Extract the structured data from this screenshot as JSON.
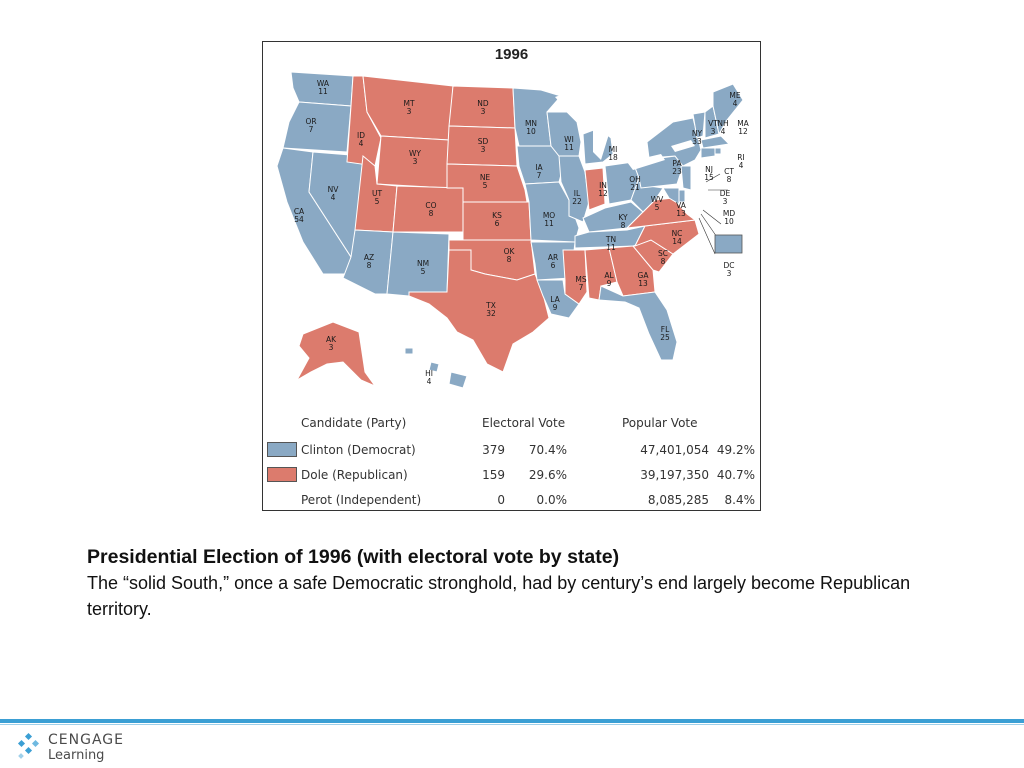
{
  "map": {
    "title": "1996",
    "colors": {
      "democrat": "#8aa9c4",
      "republican": "#dc7b6d",
      "water": "#ffffff",
      "border": "#ffffff"
    },
    "states": [
      {
        "abbr": "WA",
        "ev": "11",
        "winner": "D"
      },
      {
        "abbr": "OR",
        "ev": "7",
        "winner": "D"
      },
      {
        "abbr": "CA",
        "ev": "54",
        "winner": "D"
      },
      {
        "abbr": "NV",
        "ev": "4",
        "winner": "D"
      },
      {
        "abbr": "ID",
        "ev": "4",
        "winner": "R"
      },
      {
        "abbr": "MT",
        "ev": "3",
        "winner": "R"
      },
      {
        "abbr": "WY",
        "ev": "3",
        "winner": "R"
      },
      {
        "abbr": "UT",
        "ev": "5",
        "winner": "R"
      },
      {
        "abbr": "AZ",
        "ev": "8",
        "winner": "D"
      },
      {
        "abbr": "CO",
        "ev": "8",
        "winner": "R"
      },
      {
        "abbr": "NM",
        "ev": "5",
        "winner": "D"
      },
      {
        "abbr": "ND",
        "ev": "3",
        "winner": "R"
      },
      {
        "abbr": "SD",
        "ev": "3",
        "winner": "R"
      },
      {
        "abbr": "NE",
        "ev": "5",
        "winner": "R"
      },
      {
        "abbr": "KS",
        "ev": "6",
        "winner": "R"
      },
      {
        "abbr": "OK",
        "ev": "8",
        "winner": "R"
      },
      {
        "abbr": "TX",
        "ev": "32",
        "winner": "R"
      },
      {
        "abbr": "MN",
        "ev": "10",
        "winner": "D"
      },
      {
        "abbr": "IA",
        "ev": "7",
        "winner": "D"
      },
      {
        "abbr": "MO",
        "ev": "11",
        "winner": "D"
      },
      {
        "abbr": "AR",
        "ev": "6",
        "winner": "D"
      },
      {
        "abbr": "LA",
        "ev": "9",
        "winner": "D"
      },
      {
        "abbr": "WI",
        "ev": "11",
        "winner": "D"
      },
      {
        "abbr": "IL",
        "ev": "22",
        "winner": "D"
      },
      {
        "abbr": "MI",
        "ev": "18",
        "winner": "D"
      },
      {
        "abbr": "IN",
        "ev": "12",
        "winner": "R"
      },
      {
        "abbr": "OH",
        "ev": "21",
        "winner": "D"
      },
      {
        "abbr": "KY",
        "ev": "8",
        "winner": "D"
      },
      {
        "abbr": "TN",
        "ev": "11",
        "winner": "D"
      },
      {
        "abbr": "MS",
        "ev": "7",
        "winner": "R"
      },
      {
        "abbr": "AL",
        "ev": "9",
        "winner": "R"
      },
      {
        "abbr": "GA",
        "ev": "13",
        "winner": "R"
      },
      {
        "abbr": "FL",
        "ev": "25",
        "winner": "D"
      },
      {
        "abbr": "SC",
        "ev": "8",
        "winner": "R"
      },
      {
        "abbr": "NC",
        "ev": "14",
        "winner": "R"
      },
      {
        "abbr": "VA",
        "ev": "13",
        "winner": "R"
      },
      {
        "abbr": "WV",
        "ev": "5",
        "winner": "D"
      },
      {
        "abbr": "PA",
        "ev": "23",
        "winner": "D"
      },
      {
        "abbr": "NY",
        "ev": "33",
        "winner": "D"
      },
      {
        "abbr": "VT",
        "ev": "3",
        "winner": "D"
      },
      {
        "abbr": "NH",
        "ev": "4",
        "winner": "D"
      },
      {
        "abbr": "ME",
        "ev": "4",
        "winner": "D"
      },
      {
        "abbr": "MA",
        "ev": "12",
        "winner": "D"
      },
      {
        "abbr": "RI",
        "ev": "4",
        "winner": "D"
      },
      {
        "abbr": "CT",
        "ev": "8",
        "winner": "D"
      },
      {
        "abbr": "NJ",
        "ev": "15",
        "winner": "D"
      },
      {
        "abbr": "DE",
        "ev": "3",
        "winner": "D"
      },
      {
        "abbr": "MD",
        "ev": "10",
        "winner": "D"
      },
      {
        "abbr": "DC",
        "ev": "3",
        "winner": "D"
      },
      {
        "abbr": "AK",
        "ev": "3",
        "winner": "R"
      },
      {
        "abbr": "HI",
        "ev": "4",
        "winner": "D"
      }
    ]
  },
  "legend": {
    "headers": {
      "candidate": "Candidate (Party)",
      "electoral": "Electoral Vote",
      "popular": "Popular Vote"
    },
    "rows": [
      {
        "candidate": "Clinton (Democrat)",
        "ev": "379",
        "ev_pct": "70.4%",
        "pop": "47,401,054",
        "pop_pct": "49.2%",
        "color": "#8aa9c4"
      },
      {
        "candidate": "Dole (Republican)",
        "ev": "159",
        "ev_pct": "29.6%",
        "pop": "39,197,350",
        "pop_pct": "40.7%",
        "color": "#dc7b6d"
      },
      {
        "candidate": "Perot (Independent)",
        "ev": "0",
        "ev_pct": "0.0%",
        "pop": "8,085,285",
        "pop_pct": "8.4%",
        "color": ""
      }
    ]
  },
  "caption": {
    "title": "Presidential Election of 1996 (with electoral vote by state)",
    "body": "The “solid South,” once a safe Democratic stronghold, had by century’s end largely become Republican territory."
  },
  "footer": {
    "logo_line1": "CENGAGE",
    "logo_line2": "Learning"
  }
}
